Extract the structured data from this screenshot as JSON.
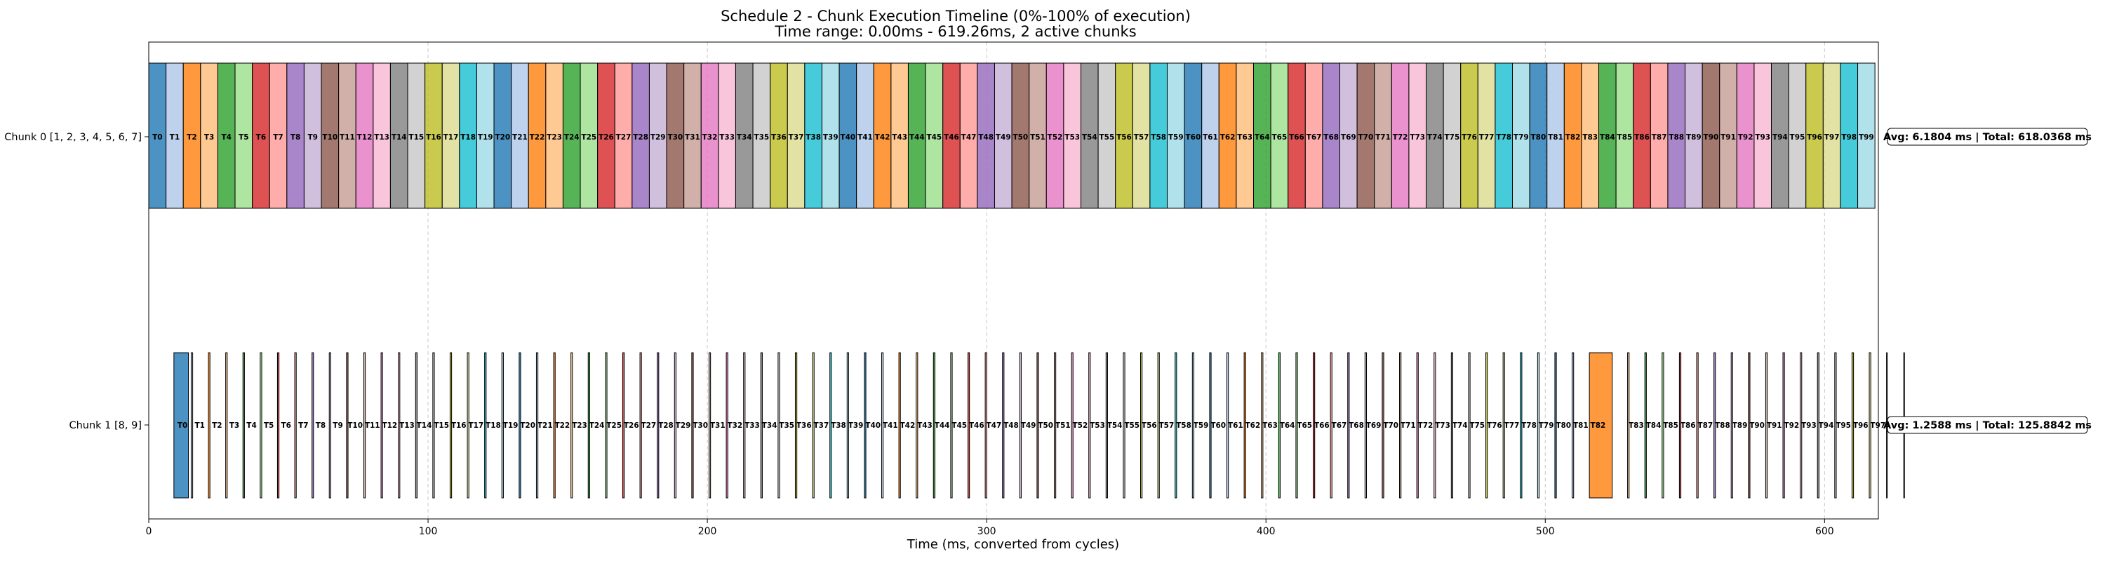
{
  "chart_data": {
    "type": "gantt",
    "title": "Schedule 2 - Chunk Execution Timeline (0%-100% of execution)",
    "subtitle": "Time range: 0.00ms - 619.26ms, 2 active chunks",
    "xlabel": "Time (ms, converted from cycles)",
    "xlim": [
      0,
      619.26
    ],
    "xticks": [
      0,
      100,
      200,
      300,
      400,
      500,
      600
    ],
    "xtick_labels": [
      "0",
      "100",
      "200",
      "300",
      "400",
      "500",
      "600"
    ],
    "grid": "x-dashed",
    "palette": [
      "#1f77b4",
      "#aec7e8",
      "#ff7f0e",
      "#ffbb78",
      "#2ca02c",
      "#98df8a",
      "#d62728",
      "#ff9896",
      "#9467bd",
      "#c5b0d5",
      "#8c564b",
      "#c49c94",
      "#e377c2",
      "#f7b6d2",
      "#7f7f7f",
      "#c7c7c7",
      "#bcbd22",
      "#dbdb8d",
      "#17becf",
      "#9edae5"
    ],
    "chunks": [
      {
        "label": "Chunk 0 [1, 2, 3, 4, 5, 6, 7]",
        "start": 0,
        "task_duration": 6.1804,
        "task_count": 100,
        "label_prefix": "T",
        "annotation": "Avg: 6.1804 ms | Total: 618.0368 ms"
      },
      {
        "label": "Chunk 1 [8, 9]",
        "start": 9.0,
        "cycle": 6.1804,
        "task_duration": 0.55,
        "first_duration": 5.2,
        "task_count": 100,
        "label_prefix": "T",
        "long_task": {
          "index": 82,
          "duration": 8.2,
          "shift_after": 7.5
        },
        "annotation": "Avg: 1.2588 ms | Total: 125.8842 ms"
      }
    ]
  }
}
